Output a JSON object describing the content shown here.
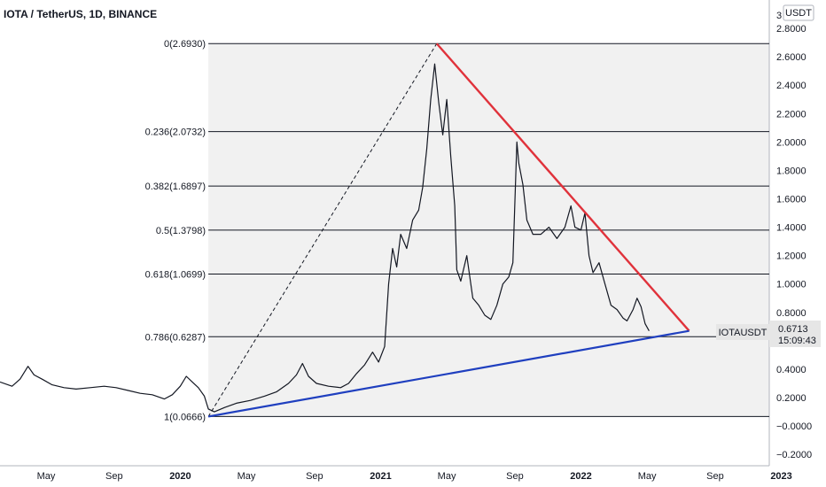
{
  "header": {
    "title": "IOTA / TetherUS, 1D, BINANCE"
  },
  "currency_badge": "USDT",
  "price_tag": {
    "symbol": "IOTAUSDT",
    "price": "0.6713",
    "countdown": "15:09:43"
  },
  "chart_data": {
    "type": "line",
    "title": "IOTA / TetherUS, 1D, BINANCE",
    "yaxis": {
      "ticks": [
        "2.8000",
        "2.6000",
        "2.4000",
        "2.2000",
        "2.0000",
        "1.8000",
        "1.6000",
        "1.4000",
        "1.2000",
        "1.0000",
        "0.8000",
        "0.4000",
        "0.2000",
        "−0.0000",
        "−0.2000"
      ],
      "tick_values": [
        2.8,
        2.6,
        2.4,
        2.2,
        2.0,
        1.8,
        1.6,
        1.4,
        1.2,
        1.0,
        0.8,
        0.4,
        0.2,
        0,
        -0.2
      ],
      "range": [
        -0.28,
        3.0
      ]
    },
    "xaxis": {
      "ticks": [
        {
          "label": "May",
          "year": 2019.33,
          "bold": false
        },
        {
          "label": "Sep",
          "year": 2019.67,
          "bold": false
        },
        {
          "label": "2020",
          "year": 2020.0,
          "bold": true
        },
        {
          "label": "May",
          "year": 2020.33,
          "bold": false
        },
        {
          "label": "Sep",
          "year": 2020.67,
          "bold": false
        },
        {
          "label": "2021",
          "year": 2021.0,
          "bold": true
        },
        {
          "label": "May",
          "year": 2021.33,
          "bold": false
        },
        {
          "label": "Sep",
          "year": 2021.67,
          "bold": false
        },
        {
          "label": "2022",
          "year": 2022.0,
          "bold": true
        },
        {
          "label": "May",
          "year": 2022.33,
          "bold": false
        },
        {
          "label": "Sep",
          "year": 2022.67,
          "bold": false
        },
        {
          "label": "2023",
          "year": 2023.0,
          "bold": true
        }
      ],
      "range": [
        2019.1,
        2022.94
      ]
    },
    "fib_levels": [
      {
        "label": "0(2.6930)",
        "value": 2.693
      },
      {
        "label": "0.236(2.0732)",
        "value": 2.0732
      },
      {
        "label": "0.382(1.6897)",
        "value": 1.6897
      },
      {
        "label": "0.5(1.3798)",
        "value": 1.3798
      },
      {
        "label": "0.618(1.0699)",
        "value": 1.0699
      },
      {
        "label": "0.786(0.6287)",
        "value": 0.6287
      },
      {
        "label": "1(0.0666)",
        "value": 0.0666
      }
    ],
    "fib_anchor": {
      "low": [
        2020.14,
        0.0666
      ],
      "high": [
        2021.28,
        2.693
      ]
    },
    "resistance_line": {
      "points": [
        [
          2021.28,
          2.693
        ],
        [
          2022.54,
          0.67
        ]
      ],
      "color": "#e0323b"
    },
    "support_line": {
      "points": [
        [
          2020.14,
          0.0666
        ],
        [
          2022.54,
          0.67
        ]
      ],
      "color": "#1f3fbf"
    },
    "price_series": [
      [
        2019.1,
        0.31
      ],
      [
        2019.16,
        0.28
      ],
      [
        2019.2,
        0.33
      ],
      [
        2019.24,
        0.42
      ],
      [
        2019.27,
        0.36
      ],
      [
        2019.31,
        0.33
      ],
      [
        2019.36,
        0.29
      ],
      [
        2019.42,
        0.27
      ],
      [
        2019.48,
        0.26
      ],
      [
        2019.55,
        0.27
      ],
      [
        2019.62,
        0.28
      ],
      [
        2019.68,
        0.27
      ],
      [
        2019.74,
        0.25
      ],
      [
        2019.8,
        0.23
      ],
      [
        2019.86,
        0.22
      ],
      [
        2019.92,
        0.19
      ],
      [
        2019.96,
        0.22
      ],
      [
        2020.0,
        0.28
      ],
      [
        2020.03,
        0.35
      ],
      [
        2020.06,
        0.31
      ],
      [
        2020.09,
        0.27
      ],
      [
        2020.12,
        0.21
      ],
      [
        2020.14,
        0.12
      ],
      [
        2020.17,
        0.1
      ],
      [
        2020.22,
        0.13
      ],
      [
        2020.28,
        0.16
      ],
      [
        2020.35,
        0.18
      ],
      [
        2020.42,
        0.21
      ],
      [
        2020.48,
        0.24
      ],
      [
        2020.54,
        0.3
      ],
      [
        2020.58,
        0.36
      ],
      [
        2020.61,
        0.44
      ],
      [
        2020.64,
        0.35
      ],
      [
        2020.68,
        0.3
      ],
      [
        2020.74,
        0.28
      ],
      [
        2020.8,
        0.27
      ],
      [
        2020.84,
        0.3
      ],
      [
        2020.88,
        0.37
      ],
      [
        2020.92,
        0.43
      ],
      [
        2020.96,
        0.52
      ],
      [
        2020.99,
        0.45
      ],
      [
        2021.02,
        0.56
      ],
      [
        2021.04,
        1.0
      ],
      [
        2021.06,
        1.25
      ],
      [
        2021.08,
        1.12
      ],
      [
        2021.1,
        1.35
      ],
      [
        2021.13,
        1.25
      ],
      [
        2021.16,
        1.45
      ],
      [
        2021.19,
        1.52
      ],
      [
        2021.21,
        1.68
      ],
      [
        2021.23,
        1.95
      ],
      [
        2021.25,
        2.3
      ],
      [
        2021.27,
        2.55
      ],
      [
        2021.29,
        2.28
      ],
      [
        2021.31,
        2.05
      ],
      [
        2021.33,
        2.3
      ],
      [
        2021.35,
        1.9
      ],
      [
        2021.37,
        1.55
      ],
      [
        2021.38,
        1.1
      ],
      [
        2021.4,
        1.02
      ],
      [
        2021.43,
        1.2
      ],
      [
        2021.46,
        0.9
      ],
      [
        2021.49,
        0.85
      ],
      [
        2021.52,
        0.78
      ],
      [
        2021.55,
        0.75
      ],
      [
        2021.58,
        0.85
      ],
      [
        2021.61,
        1.0
      ],
      [
        2021.64,
        1.05
      ],
      [
        2021.66,
        1.15
      ],
      [
        2021.68,
        2.0
      ],
      [
        2021.69,
        1.85
      ],
      [
        2021.71,
        1.7
      ],
      [
        2021.73,
        1.45
      ],
      [
        2021.76,
        1.35
      ],
      [
        2021.8,
        1.35
      ],
      [
        2021.84,
        1.4
      ],
      [
        2021.88,
        1.32
      ],
      [
        2021.92,
        1.4
      ],
      [
        2021.95,
        1.55
      ],
      [
        2021.97,
        1.4
      ],
      [
        2022.0,
        1.38
      ],
      [
        2022.02,
        1.5
      ],
      [
        2022.04,
        1.2
      ],
      [
        2022.06,
        1.08
      ],
      [
        2022.09,
        1.15
      ],
      [
        2022.12,
        1.0
      ],
      [
        2022.15,
        0.85
      ],
      [
        2022.18,
        0.82
      ],
      [
        2022.21,
        0.76
      ],
      [
        2022.23,
        0.74
      ],
      [
        2022.26,
        0.82
      ],
      [
        2022.28,
        0.9
      ],
      [
        2022.3,
        0.84
      ],
      [
        2022.32,
        0.72
      ],
      [
        2022.34,
        0.67
      ]
    ]
  }
}
